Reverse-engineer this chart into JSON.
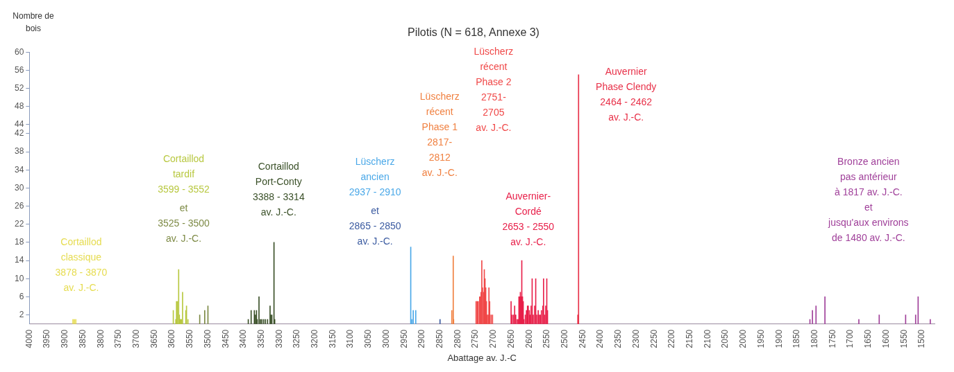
{
  "chart_data": {
    "type": "bar",
    "title": "Pilotis (N = 618, Annexe 3)",
    "xlabel": "Abattage av. J.-C",
    "ylabel": "Nombre de\nbois",
    "xlim": [
      4000,
      1465
    ],
    "xticks": [
      4000,
      3950,
      3900,
      3850,
      3800,
      3750,
      3700,
      3650,
      3600,
      3550,
      3500,
      3450,
      3400,
      3350,
      3300,
      3250,
      3200,
      3150,
      3100,
      3050,
      3000,
      2950,
      2900,
      2850,
      2800,
      2750,
      2700,
      2650,
      2600,
      2550,
      2500,
      2450,
      2400,
      2350,
      2300,
      2250,
      2200,
      2150,
      2100,
      2050,
      2000,
      1950,
      1900,
      1850,
      1800,
      1750,
      1700,
      1650,
      1600,
      1550,
      1500
    ],
    "ylim": [
      0,
      60
    ],
    "yticks": [
      2,
      6,
      10,
      14,
      18,
      22,
      26,
      30,
      34,
      38,
      42,
      44,
      48,
      52,
      56,
      60
    ],
    "grid": false,
    "legend": false,
    "series": [
      {
        "name": "Cortaillod\nclassique\n3878 - 3870\nav. J.-C.",
        "color": "#e6dc50",
        "x": [
          3878,
          3874,
          3870
        ],
        "values": [
          1,
          1,
          1
        ]
      },
      {
        "name": "Cortaillod\ntardif\n3599 - 3552",
        "color": "#b8c840",
        "x": [
          3597,
          3590,
          3588,
          3585,
          3582,
          3580,
          3578,
          3576,
          3574,
          3571,
          3562,
          3560,
          3556
        ],
        "values": [
          3,
          1,
          5,
          5,
          12,
          2,
          1,
          1,
          1,
          7,
          3,
          4,
          1
        ]
      },
      {
        "name": "et\n3525 - 3500\nav. J.-C.",
        "color": "#7d8a45",
        "x": [
          3523,
          3509,
          3500
        ],
        "values": [
          2,
          3,
          4
        ]
      },
      {
        "name": "Cortaillod\nPort-Conty\n3388 - 3314\nav. J.-C.",
        "color": "#3a5028",
        "x": [
          3387,
          3379,
          3370,
          3367,
          3364,
          3362,
          3357,
          3353,
          3349,
          3344,
          3339,
          3333,
          3326,
          3324,
          3321,
          3315,
          3313
        ],
        "values": [
          1,
          3,
          3,
          2,
          3,
          1,
          6,
          1,
          1,
          1,
          1,
          1,
          4,
          2,
          2,
          18,
          1
        ]
      },
      {
        "name": "Lüscherz\nancien\n2937 - 2910",
        "color": "#4aa8e8",
        "x": [
          2932,
          2929,
          2925,
          2918
        ],
        "values": [
          17,
          1,
          3,
          3
        ]
      },
      {
        "name": "et\n2865 - 2850\nav. J.-C.",
        "color": "#3a5aa0",
        "x": [
          2850
        ],
        "values": [
          1
        ]
      },
      {
        "name": "Lüscherz\nrécent\nPhase 1\n2817-\n2812\nav. J.-C.",
        "color": "#f08040",
        "x": [
          2817,
          2813,
          2812
        ],
        "values": [
          3,
          15,
          1
        ]
      },
      {
        "name": "Lüscherz\nrécent\nPhase 2\n2751-\n2705\nav. J.-C.",
        "color": "#f04848",
        "x": [
          2749,
          2746,
          2743,
          2739,
          2737,
          2735,
          2733,
          2731,
          2728,
          2726,
          2724,
          2722,
          2720,
          2718,
          2715,
          2713,
          2711,
          2707,
          2703
        ],
        "values": [
          5,
          5,
          5,
          6,
          6,
          7,
          14,
          8,
          7,
          12,
          10,
          8,
          5,
          2,
          2,
          8,
          5,
          2,
          2
        ]
      },
      {
        "name": "Auvernier-\nCordé\n2653 - 2550\nav. J.-C.",
        "color": "#e8204a",
        "x": [
          2651,
          2648,
          2644,
          2641,
          2638,
          2634,
          2631,
          2629,
          2627,
          2625,
          2623,
          2621,
          2619,
          2617,
          2615,
          2611,
          2608,
          2605,
          2603,
          2600,
          2598,
          2595,
          2592,
          2589,
          2585,
          2582,
          2579,
          2575,
          2572,
          2569,
          2566,
          2562,
          2560,
          2557,
          2554,
          2551,
          2549
        ],
        "values": [
          5,
          2,
          2,
          4,
          2,
          1,
          1,
          6,
          6,
          7,
          6,
          14,
          6,
          5,
          1,
          2,
          3,
          4,
          4,
          3,
          2,
          4,
          10,
          2,
          4,
          10,
          2,
          3,
          2,
          2,
          3,
          4,
          10,
          2,
          4,
          10,
          3
        ]
      },
      {
        "name": "Auvernier\nPhase Clendy\n2464 - 2462\nav. J.-C.",
        "color": "#e83048",
        "x": [
          2464,
          2462
        ],
        "values": [
          2,
          55
        ]
      },
      {
        "name": "Bronze ancien\npas antérieur\nà 1817 av. J.-C.\net\njusqu'aux environs\nde 1480 av. J.-C.",
        "color": "#a0409a",
        "x": [
          1814,
          1807,
          1797,
          1772,
          1677,
          1620,
          1546,
          1518,
          1511,
          1477
        ],
        "values": [
          1,
          3,
          4,
          6,
          1,
          2,
          2,
          2,
          6,
          1
        ]
      }
    ]
  }
}
